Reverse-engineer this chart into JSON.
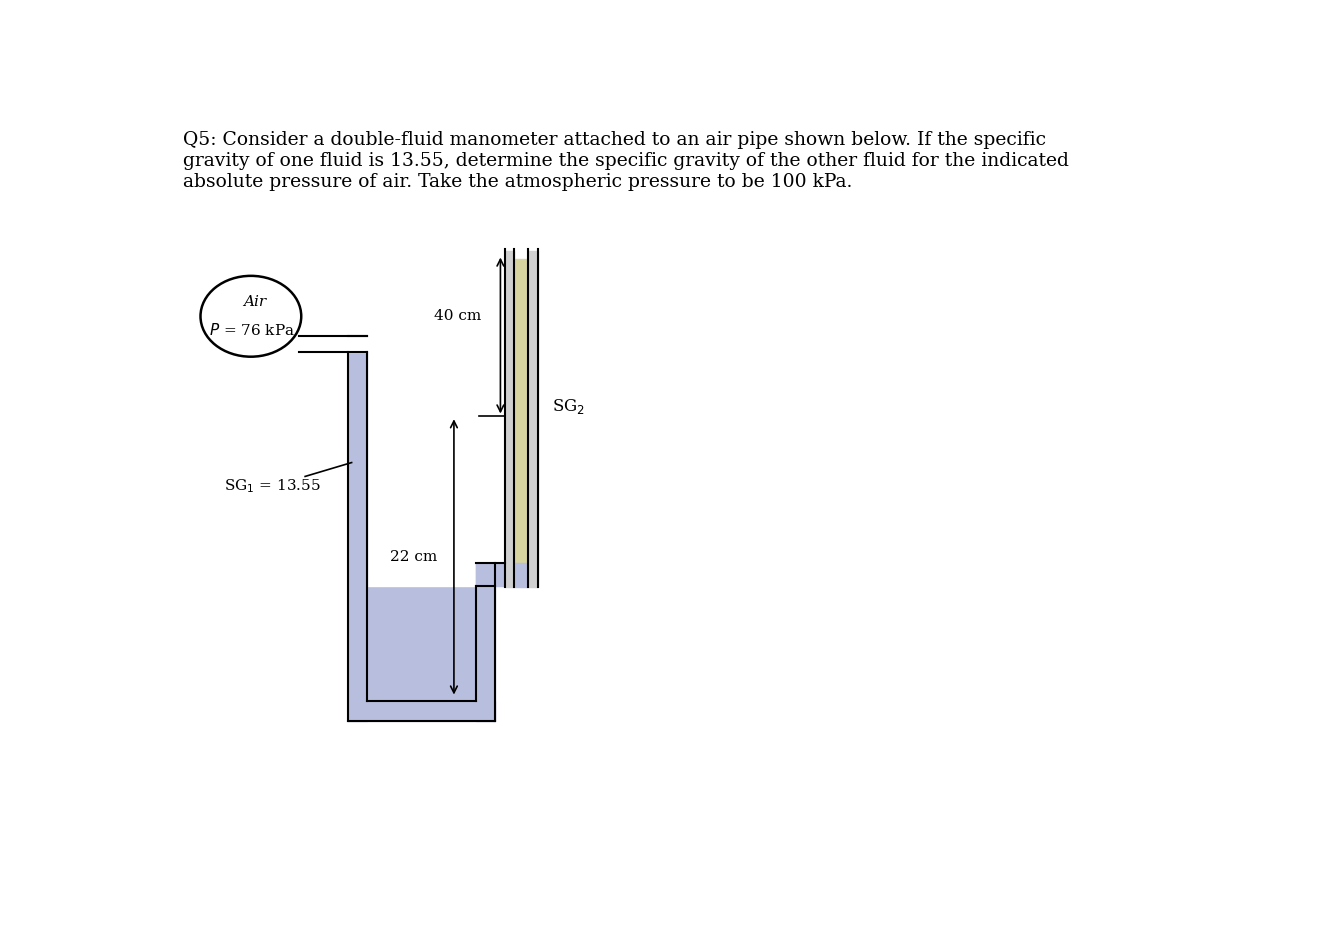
{
  "title_text": "Q5: Consider a double-fluid manometer attached to an air pipe shown below. If the specific\ngravity of one fluid is 13.55, determine the specific gravity of the other fluid for the indicated\nabsolute pressure of air. Take the atmospheric pressure to be 100 kPa.",
  "title_fontsize": 13.5,
  "background_color": "#ffffff",
  "fluid1_color": "#b8bedd",
  "fluid2_color": "#d8d4a0",
  "fluid1_sg_label": "SG$_1$ = 13.55",
  "fluid2_sg_label": "SG$_2$",
  "air_label": "Air",
  "pressure_label": "$P$ = 76 kPa",
  "dim1_label": "40 cm",
  "dim2_label": "22 cm"
}
